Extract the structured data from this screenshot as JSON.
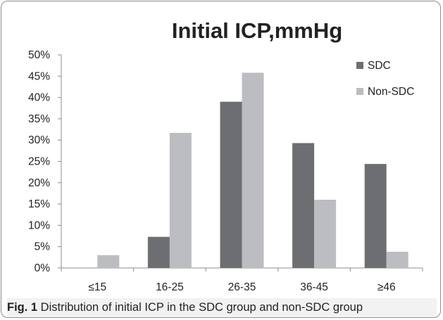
{
  "chart_data": {
    "type": "bar",
    "title": "Initial ICP,mmHg",
    "categories": [
      "≤15",
      "16-25",
      "26-35",
      "36-45",
      "≥46"
    ],
    "series": [
      {
        "name": "SDC",
        "values": [
          0,
          7.3,
          39,
          29.3,
          24.4
        ],
        "color": "#6d6e71"
      },
      {
        "name": "Non-SDC",
        "values": [
          3,
          31.7,
          45.8,
          16,
          3.8
        ],
        "color": "#bcbdc0"
      }
    ],
    "y_ticks": [
      "0%",
      "5%",
      "10%",
      "15%",
      "20%",
      "25%",
      "30%",
      "35%",
      "40%",
      "45%",
      "50%"
    ],
    "ylim": [
      0,
      50
    ],
    "y_unit": "%",
    "grid": false,
    "legend": "top-right",
    "xlabel": "",
    "ylabel": ""
  },
  "caption": {
    "label": "Fig. 1",
    "text": " Distribution of initial ICP in the SDC group and non-SDC group"
  }
}
